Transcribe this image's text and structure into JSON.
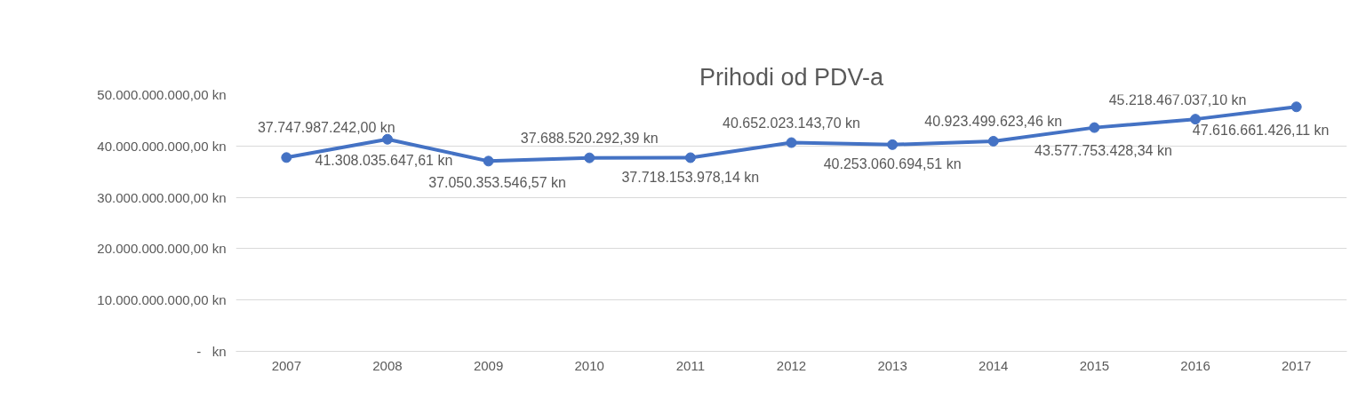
{
  "chart_data": {
    "type": "line",
    "title": "Prihodi od PDV-a",
    "categories": [
      "2007",
      "2008",
      "2009",
      "2010",
      "2011",
      "2012",
      "2013",
      "2014",
      "2015",
      "2016",
      "2017"
    ],
    "series": [
      {
        "color": "#4472c4",
        "values": [
          37747987242.0,
          41308035647.61,
          37050353546.57,
          37688520292.39,
          37718153978.14,
          40652023143.7,
          40253060694.51,
          40923499623.46,
          43577753428.34,
          45218467037.1,
          47616661426.11
        ],
        "value_labels": [
          "37.747.987.242,00 kn",
          "41.308.035.647,61 kn",
          "37.050.353.546,57 kn",
          "37.688.520.292,39 kn",
          "37.718.153.978,14 kn",
          "40.652.023.143,70 kn",
          "40.253.060.694,51 kn",
          "40.923.499.623,46 kn",
          "43.577.753.428,34 kn",
          "45.218.467.037,10 kn",
          "47.616.661.426,11 kn"
        ]
      }
    ],
    "ylim": [
      0,
      50000000000
    ],
    "yticks": [
      {
        "value": 0,
        "label": "-   kn"
      },
      {
        "value": 10000000000,
        "label": "10.000.000.000,00 kn"
      },
      {
        "value": 20000000000,
        "label": "20.000.000.000,00 kn"
      },
      {
        "value": 30000000000,
        "label": "30.000.000.000,00 kn"
      },
      {
        "value": 40000000000,
        "label": "40.000.000.000,00 kn"
      },
      {
        "value": 50000000000,
        "label": "50.000.000.000,00 kn"
      }
    ],
    "grid": "y",
    "marker": "circle",
    "line_style": "solid"
  }
}
